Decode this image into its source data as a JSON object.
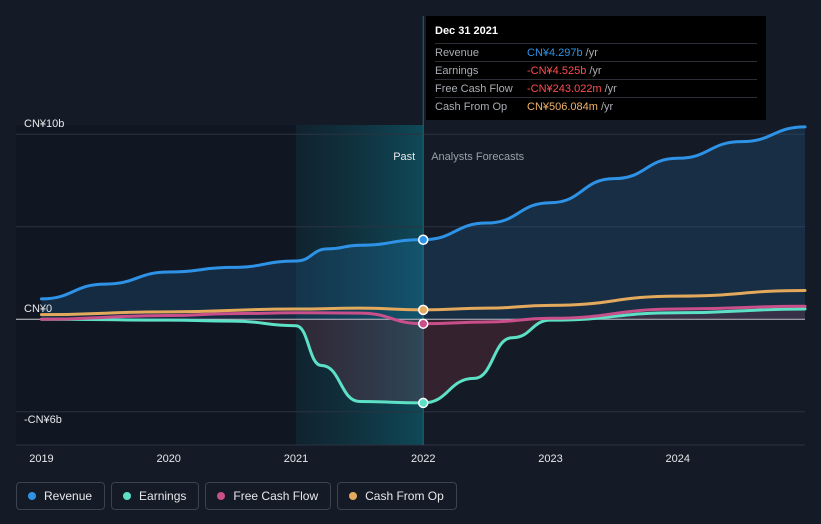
{
  "tooltip": {
    "date": "Dec 31 2021",
    "rows": [
      {
        "label": "Revenue",
        "value": "CN¥4.297b",
        "unit": "/yr",
        "color": "#2e93e6"
      },
      {
        "label": "Earnings",
        "value": "-CN¥4.525b",
        "unit": "/yr",
        "color": "#ff4d4f"
      },
      {
        "label": "Free Cash Flow",
        "value": "-CN¥243.022m",
        "unit": "/yr",
        "color": "#ff4d4f"
      },
      {
        "label": "Cash From Op",
        "value": "CN¥506.084m",
        "unit": "/yr",
        "color": "#f2b36a"
      }
    ]
  },
  "legend": [
    {
      "label": "Revenue",
      "color": "#2e93e6"
    },
    {
      "label": "Earnings",
      "color": "#5ce0c6"
    },
    {
      "label": "Free Cash Flow",
      "color": "#c94f8a"
    },
    {
      "label": "Cash From Op",
      "color": "#e3a95c"
    }
  ],
  "chart_data": {
    "type": "line",
    "y_axis_labels": [
      {
        "label": "CN¥10b",
        "value": 10
      },
      {
        "label": "CN¥0",
        "value": 0
      },
      {
        "label": "-CN¥6b",
        "value": -6
      }
    ],
    "x_ticks": [
      {
        "label": "2019",
        "value": 2019
      },
      {
        "label": "2020",
        "value": 2020
      },
      {
        "label": "2021",
        "value": 2021
      },
      {
        "label": "2022",
        "value": 2022
      },
      {
        "label": "2023",
        "value": 2023
      },
      {
        "label": "2024",
        "value": 2024
      }
    ],
    "xlim": [
      2018.8,
      2025.0
    ],
    "ylim": [
      -6.8,
      10.5
    ],
    "grid_values": [
      10,
      5,
      0,
      -5
    ],
    "highlight_start": 2021.0,
    "divider_x": 2022.0,
    "past_label": "Past",
    "forecast_label": "Analysts Forecasts",
    "units": "CN¥ billions",
    "series": [
      {
        "name": "Revenue",
        "color": "#2e93e6",
        "area": true,
        "points": [
          [
            2019.0,
            1.1
          ],
          [
            2019.5,
            1.9
          ],
          [
            2020.0,
            2.55
          ],
          [
            2020.5,
            2.8
          ],
          [
            2021.0,
            3.15
          ],
          [
            2021.25,
            3.8
          ],
          [
            2021.5,
            4.0
          ],
          [
            2022.0,
            4.3
          ],
          [
            2022.5,
            5.2
          ],
          [
            2023.0,
            6.3
          ],
          [
            2023.5,
            7.6
          ],
          [
            2024.0,
            8.7
          ],
          [
            2024.5,
            9.6
          ],
          [
            2025.0,
            10.4
          ]
        ]
      },
      {
        "name": "Earnings",
        "color": "#5ce0c6",
        "area": true,
        "points": [
          [
            2019.0,
            0.0
          ],
          [
            2020.0,
            -0.05
          ],
          [
            2020.5,
            -0.1
          ],
          [
            2021.0,
            -0.35
          ],
          [
            2021.2,
            -2.5
          ],
          [
            2021.5,
            -4.45
          ],
          [
            2022.0,
            -4.525
          ],
          [
            2022.4,
            -3.2
          ],
          [
            2022.7,
            -1.0
          ],
          [
            2023.0,
            -0.05
          ],
          [
            2024.0,
            0.35
          ],
          [
            2025.0,
            0.55
          ]
        ]
      },
      {
        "name": "Free Cash Flow",
        "color": "#c94f8a",
        "area": false,
        "points": [
          [
            2019.0,
            0.0
          ],
          [
            2020.0,
            0.2
          ],
          [
            2020.5,
            0.3
          ],
          [
            2021.0,
            0.35
          ],
          [
            2021.5,
            0.33
          ],
          [
            2022.0,
            -0.243
          ],
          [
            2022.5,
            -0.15
          ],
          [
            2023.0,
            0.05
          ],
          [
            2024.0,
            0.55
          ],
          [
            2025.0,
            0.7
          ]
        ]
      },
      {
        "name": "Cash From Op",
        "color": "#e3a95c",
        "area": false,
        "points": [
          [
            2019.0,
            0.25
          ],
          [
            2020.0,
            0.4
          ],
          [
            2021.0,
            0.55
          ],
          [
            2021.5,
            0.6
          ],
          [
            2022.0,
            0.506
          ],
          [
            2022.5,
            0.6
          ],
          [
            2023.0,
            0.75
          ],
          [
            2024.0,
            1.25
          ],
          [
            2025.0,
            1.55
          ]
        ]
      }
    ],
    "highlight_points": [
      {
        "series": "Revenue",
        "x": 2022.0,
        "y": 4.297
      },
      {
        "series": "Earnings",
        "x": 2022.0,
        "y": -4.525
      },
      {
        "series": "Free Cash Flow",
        "x": 2022.0,
        "y": -0.243
      },
      {
        "series": "Cash From Op",
        "x": 2022.0,
        "y": 0.506
      }
    ]
  }
}
